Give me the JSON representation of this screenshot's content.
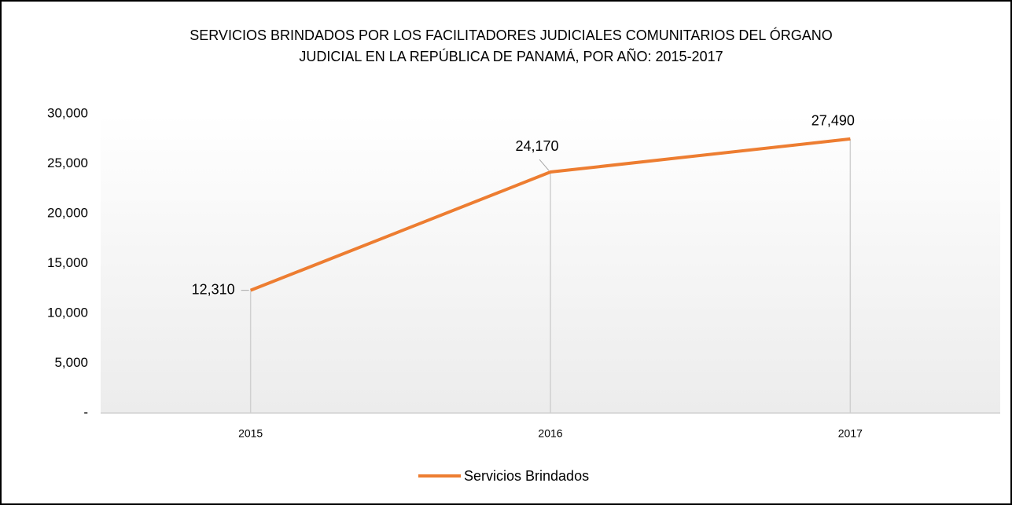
{
  "chart_data": {
    "type": "line",
    "title": [
      "SERVICIOS BRINDADOS POR LOS FACILITADORES JUDICIALES COMUNITARIOS DEL ÓRGANO",
      "JUDICIAL EN LA REPÚBLICA DE PANAMÁ, POR AÑO: 2015-2017"
    ],
    "categories": [
      "2015",
      "2016",
      "2017"
    ],
    "series": [
      {
        "name": "Servicios Brindados",
        "color": "#ed7d31",
        "values": [
          12310,
          24170,
          27490
        ],
        "value_labels": [
          "12,310",
          "24,170",
          "27,490"
        ]
      }
    ],
    "ylim": [
      0,
      30000
    ],
    "yticks": [
      {
        "value": 0,
        "label": "-"
      },
      {
        "value": 5000,
        "label": "5,000"
      },
      {
        "value": 10000,
        "label": "10,000"
      },
      {
        "value": 15000,
        "label": "15,000"
      },
      {
        "value": 20000,
        "label": "20,000"
      },
      {
        "value": 25000,
        "label": "25,000"
      },
      {
        "value": 30000,
        "label": "30,000"
      }
    ],
    "grid": false,
    "drop_lines": true,
    "legend": "bottom"
  }
}
